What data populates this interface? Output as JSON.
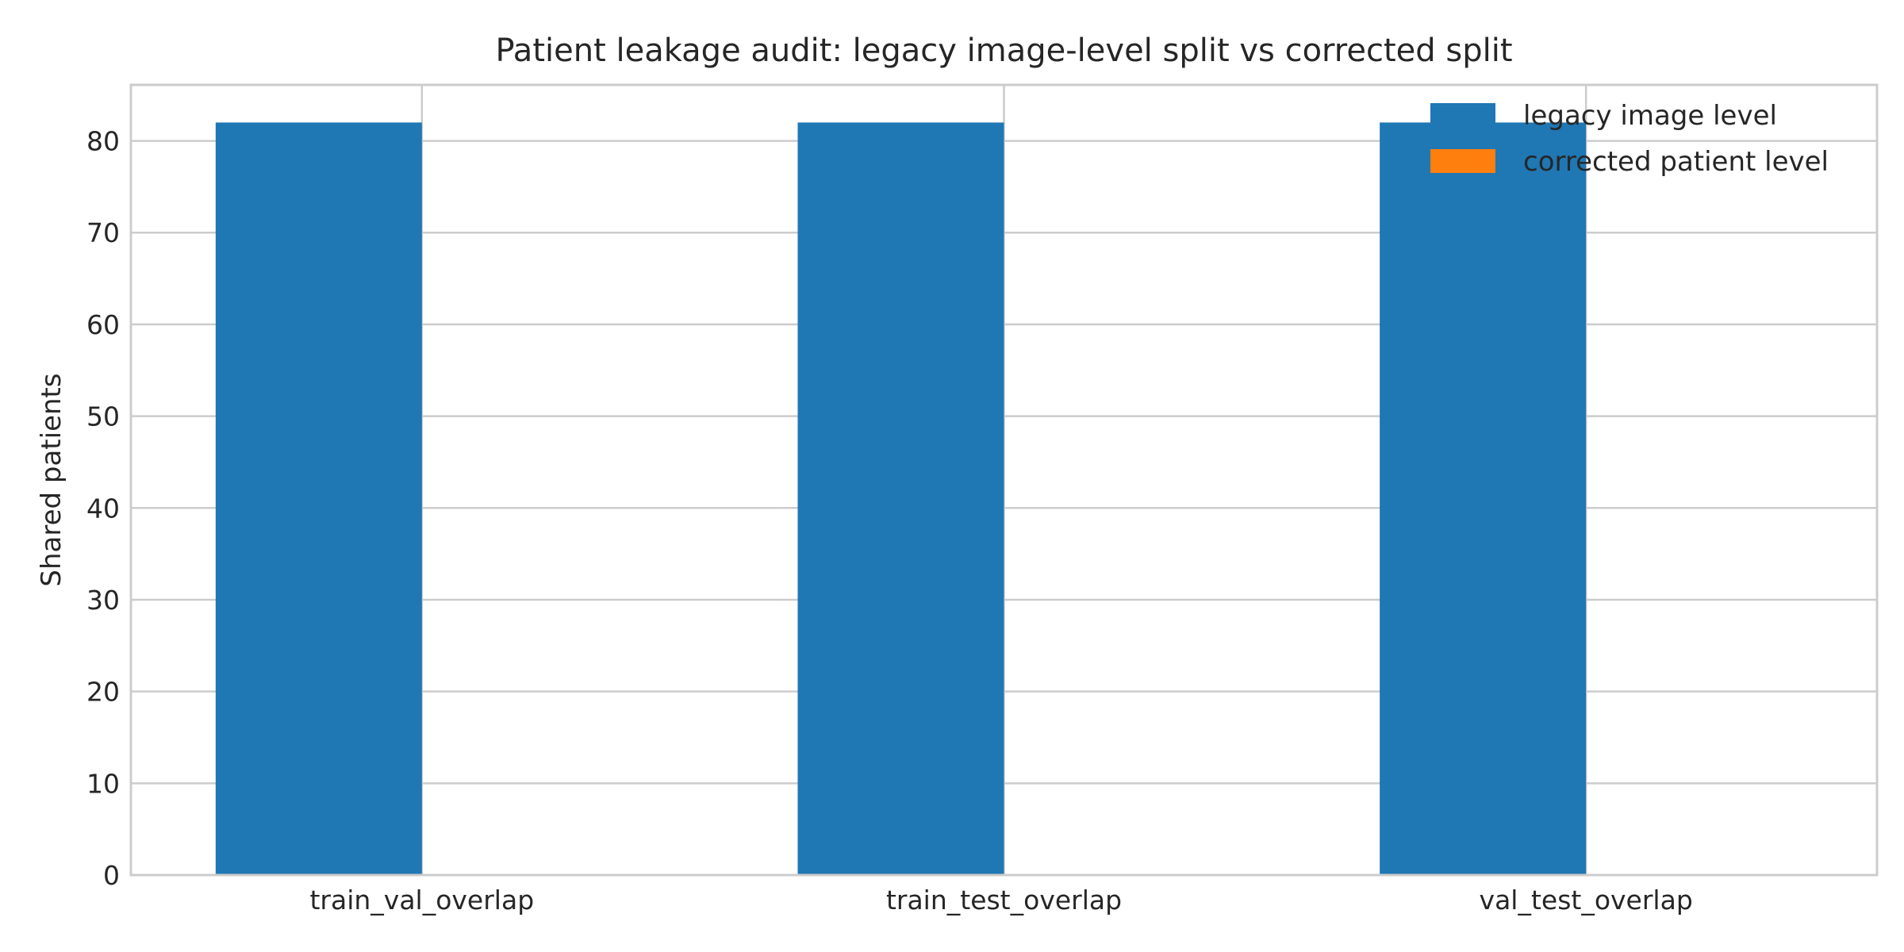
{
  "chart_data": {
    "type": "bar",
    "title": "Patient leakage audit: legacy image-level split vs corrected split",
    "xlabel": "",
    "ylabel": "Shared patients",
    "categories": [
      "train_val_overlap",
      "train_test_overlap",
      "val_test_overlap"
    ],
    "series": [
      {
        "name": "legacy image level",
        "values": [
          82,
          82,
          82
        ],
        "color": "#1f77b4"
      },
      {
        "name": "corrected patient level",
        "values": [
          0,
          0,
          0
        ],
        "color": "#ff7f0e"
      }
    ],
    "ylim": [
      0,
      86.1
    ],
    "yticks": [
      0,
      10,
      20,
      30,
      40,
      50,
      60,
      70,
      80
    ],
    "grid": true,
    "legend_position": "upper right"
  }
}
